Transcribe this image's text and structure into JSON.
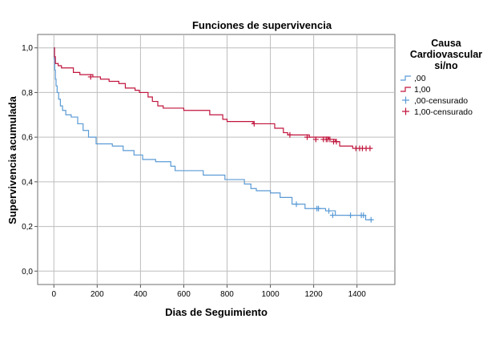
{
  "chart_data": {
    "type": "line",
    "subtype": "kaplan-meier step",
    "title": "Funciones de supervivencia",
    "xlabel": "Dias de Seguimiento",
    "ylabel": "Supervivencia acumulada",
    "xlim": [
      -75,
      1575
    ],
    "ylim": [
      -0.06,
      1.06
    ],
    "x_ticks": [
      0,
      200,
      400,
      600,
      800,
      1000,
      1200,
      1400
    ],
    "x_tick_labels": [
      "0",
      "200",
      "400",
      "600",
      "800",
      "1000",
      "1200",
      "1400"
    ],
    "y_ticks": [
      0.0,
      0.2,
      0.4,
      0.6,
      0.8,
      1.0
    ],
    "y_tick_labels": [
      "0,0",
      "0,2",
      "0,4",
      "0,6",
      "0,8",
      "1,0"
    ],
    "grid": true,
    "legend": {
      "title_lines": [
        "Causa",
        "Cardiovascular",
        "si/no"
      ],
      "placement": "right",
      "entries": [
        {
          "label": ",00",
          "symbol": "line",
          "color": "#5b9bd5"
        },
        {
          "label": "1,00",
          "symbol": "line",
          "color": "#c0143c"
        },
        {
          "label": ",00-censurado",
          "symbol": "plus",
          "color": "#5b9bd5"
        },
        {
          "label": "1,00-censurado",
          "symbol": "plus",
          "color": "#c0143c"
        }
      ]
    },
    "series": [
      {
        "name": ",00",
        "color": "#5b9bd5",
        "steps": [
          [
            0,
            1.0
          ],
          [
            2,
            0.95
          ],
          [
            4,
            0.9
          ],
          [
            7,
            0.86
          ],
          [
            10,
            0.83
          ],
          [
            15,
            0.8
          ],
          [
            22,
            0.77
          ],
          [
            30,
            0.74
          ],
          [
            40,
            0.72
          ],
          [
            55,
            0.7
          ],
          [
            80,
            0.69
          ],
          [
            110,
            0.66
          ],
          [
            135,
            0.63
          ],
          [
            160,
            0.6
          ],
          [
            195,
            0.57
          ],
          [
            270,
            0.56
          ],
          [
            320,
            0.54
          ],
          [
            370,
            0.52
          ],
          [
            410,
            0.5
          ],
          [
            470,
            0.49
          ],
          [
            540,
            0.47
          ],
          [
            560,
            0.45
          ],
          [
            690,
            0.43
          ],
          [
            790,
            0.41
          ],
          [
            880,
            0.39
          ],
          [
            910,
            0.37
          ],
          [
            935,
            0.36
          ],
          [
            1000,
            0.35
          ],
          [
            1045,
            0.33
          ],
          [
            1100,
            0.3
          ],
          [
            1160,
            0.28
          ],
          [
            1255,
            0.27
          ],
          [
            1300,
            0.25
          ],
          [
            1440,
            0.23
          ],
          [
            1470,
            0.23
          ]
        ],
        "censored": [
          [
            1120,
            0.3
          ],
          [
            1215,
            0.28
          ],
          [
            1222,
            0.28
          ],
          [
            1270,
            0.27
          ],
          [
            1288,
            0.25
          ],
          [
            1370,
            0.25
          ],
          [
            1420,
            0.25
          ],
          [
            1430,
            0.25
          ],
          [
            1465,
            0.23
          ]
        ]
      },
      {
        "name": "1,00",
        "color": "#c0143c",
        "steps": [
          [
            0,
            1.0
          ],
          [
            3,
            0.96
          ],
          [
            7,
            0.93
          ],
          [
            20,
            0.92
          ],
          [
            35,
            0.91
          ],
          [
            90,
            0.89
          ],
          [
            120,
            0.88
          ],
          [
            180,
            0.87
          ],
          [
            215,
            0.86
          ],
          [
            255,
            0.85
          ],
          [
            300,
            0.84
          ],
          [
            330,
            0.82
          ],
          [
            375,
            0.81
          ],
          [
            395,
            0.8
          ],
          [
            435,
            0.78
          ],
          [
            455,
            0.76
          ],
          [
            480,
            0.74
          ],
          [
            505,
            0.73
          ],
          [
            600,
            0.72
          ],
          [
            720,
            0.7
          ],
          [
            780,
            0.68
          ],
          [
            800,
            0.67
          ],
          [
            920,
            0.66
          ],
          [
            1020,
            0.64
          ],
          [
            1060,
            0.62
          ],
          [
            1080,
            0.61
          ],
          [
            1180,
            0.6
          ],
          [
            1270,
            0.59
          ],
          [
            1300,
            0.58
          ],
          [
            1320,
            0.56
          ],
          [
            1380,
            0.55
          ],
          [
            1470,
            0.55
          ]
        ],
        "censored": [
          [
            170,
            0.87
          ],
          [
            925,
            0.66
          ],
          [
            1090,
            0.61
          ],
          [
            1170,
            0.6
          ],
          [
            1210,
            0.59
          ],
          [
            1245,
            0.59
          ],
          [
            1258,
            0.59
          ],
          [
            1265,
            0.59
          ],
          [
            1275,
            0.59
          ],
          [
            1292,
            0.58
          ],
          [
            1305,
            0.58
          ],
          [
            1395,
            0.55
          ],
          [
            1412,
            0.55
          ],
          [
            1425,
            0.55
          ],
          [
            1442,
            0.55
          ],
          [
            1460,
            0.55
          ]
        ]
      }
    ]
  }
}
